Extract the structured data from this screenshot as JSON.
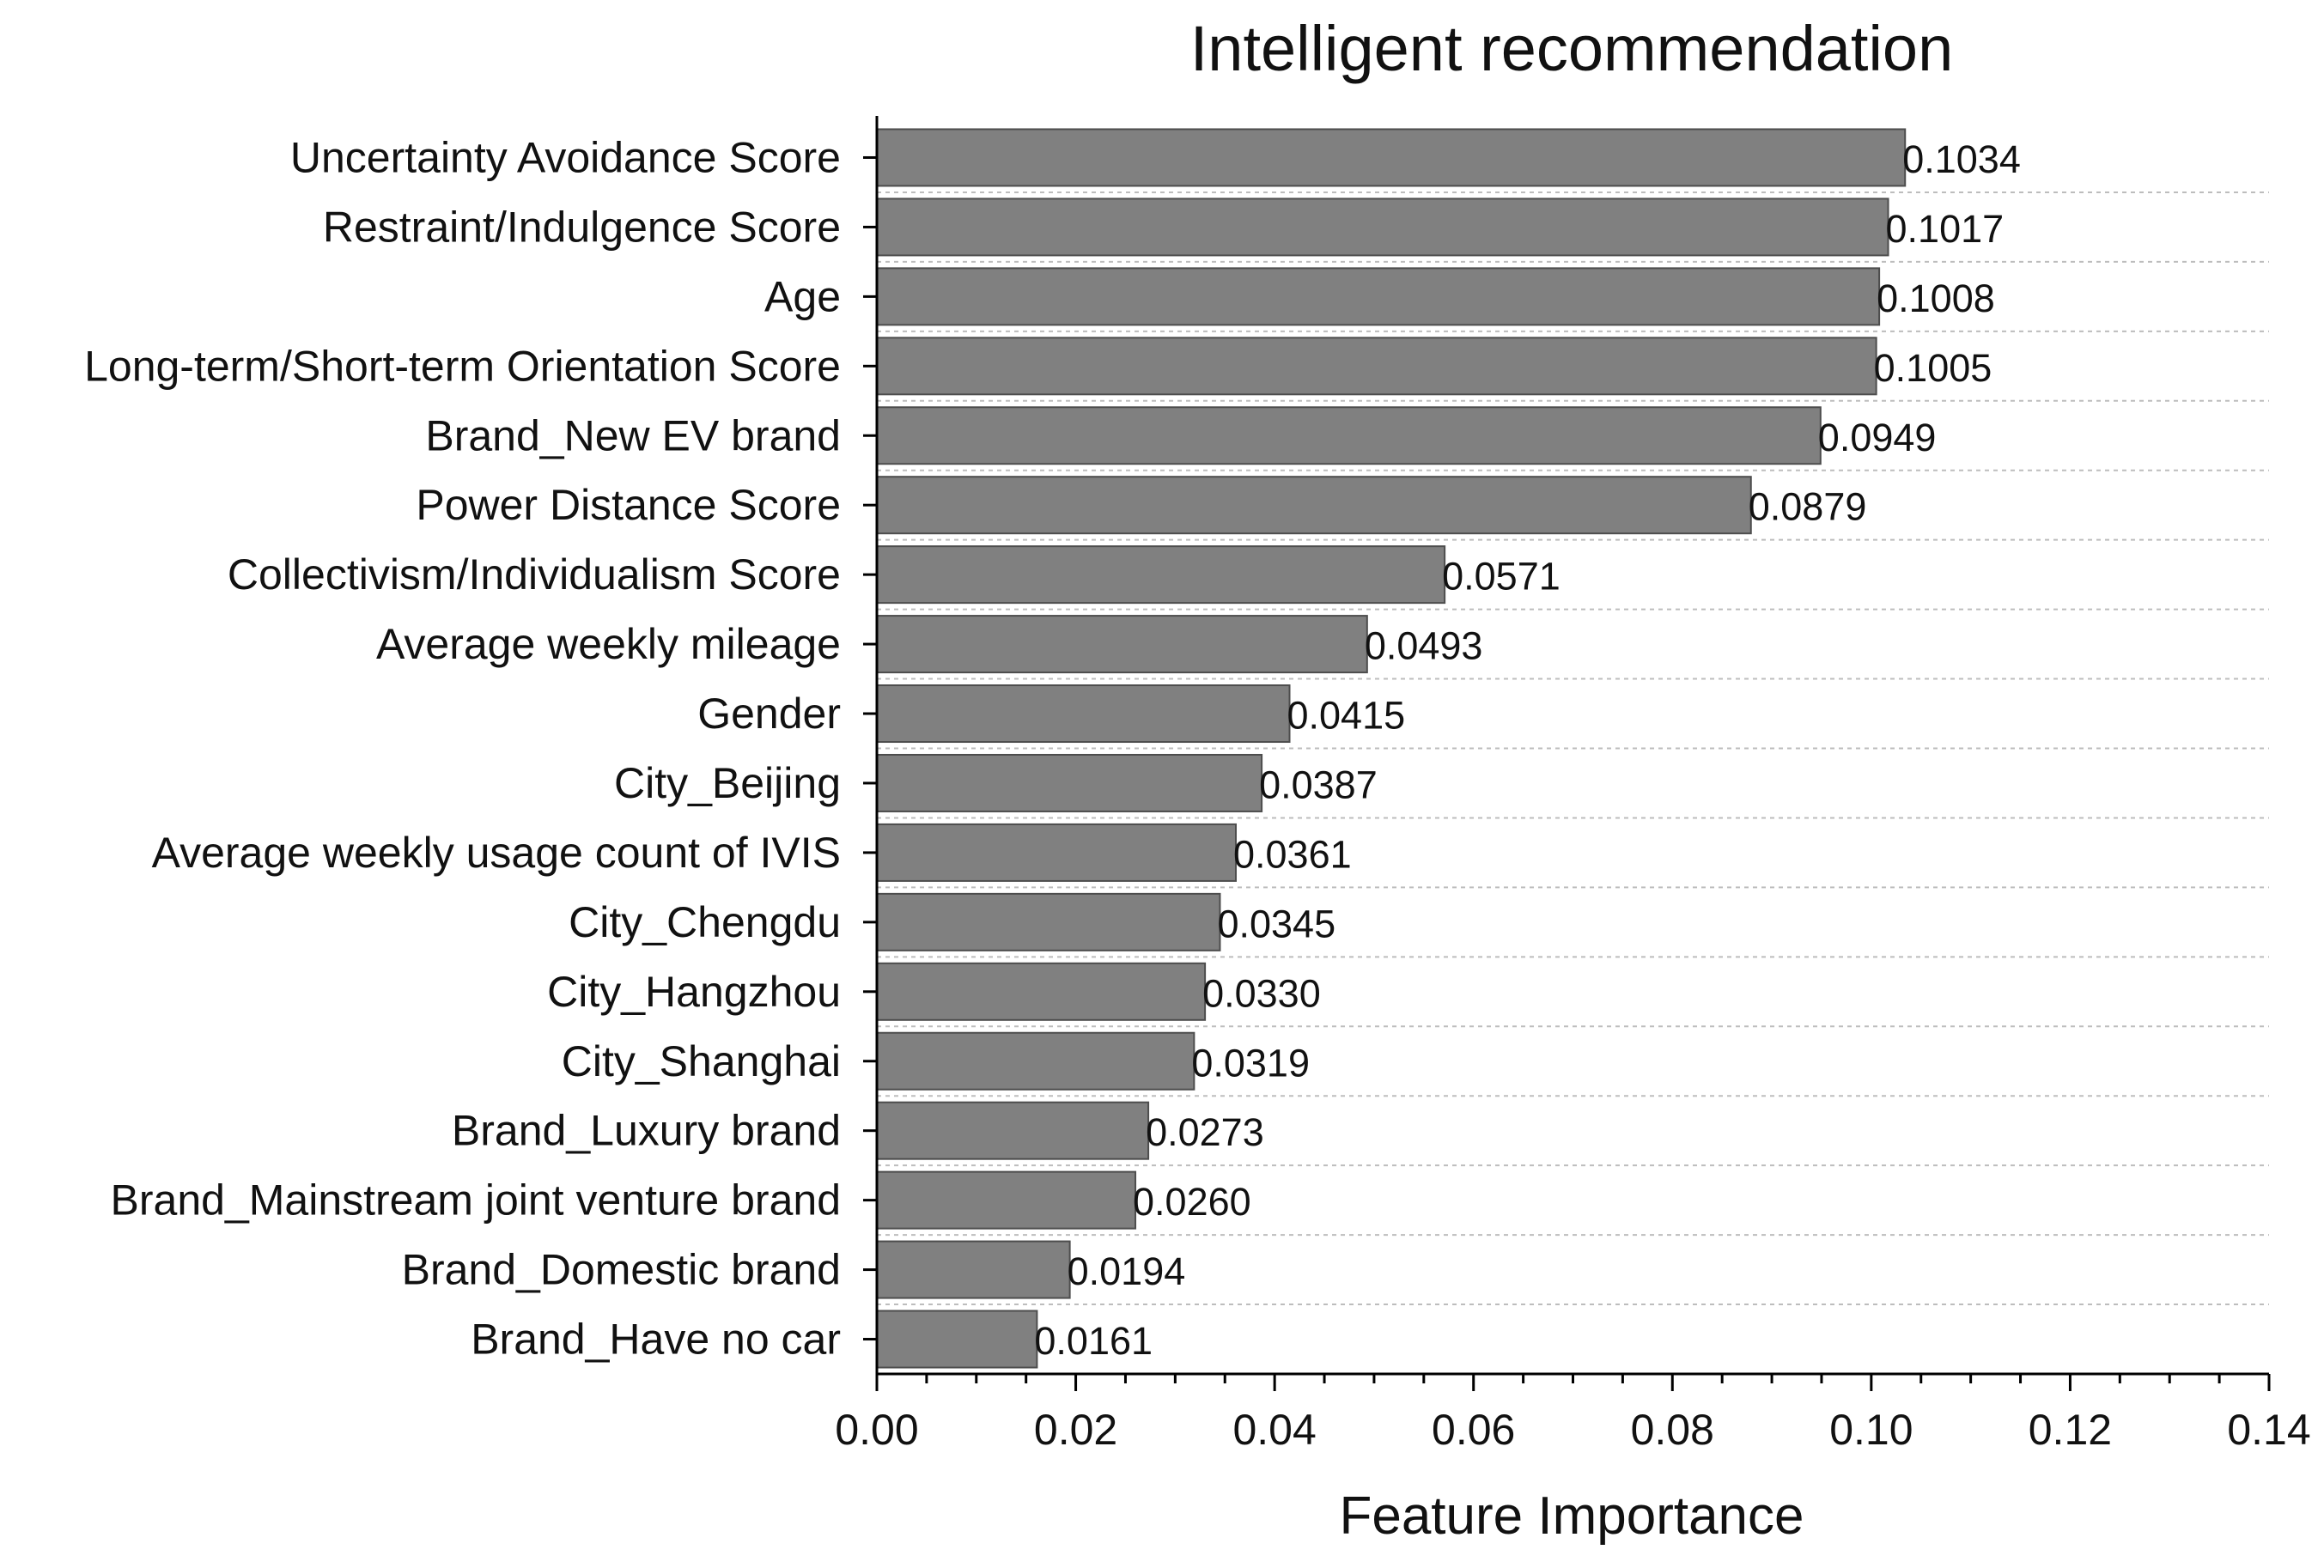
{
  "chart_data": {
    "type": "bar",
    "orientation": "horizontal",
    "title": "Intelligent recommendation",
    "xlabel": "Feature Importance",
    "ylabel": "",
    "xlim": [
      0,
      0.14
    ],
    "x_ticks": [
      "0.00",
      "0.02",
      "0.04",
      "0.06",
      "0.08",
      "0.10",
      "0.12",
      "0.14"
    ],
    "grid": "horizontal dashed lines between bars",
    "colors": {
      "bar": "#808080",
      "bar_edge": "#4d4d4d",
      "grid": "#bdbdbd"
    },
    "categories": [
      "Uncertainty Avoidance Score",
      "Restraint/Indulgence Score",
      "Age",
      "Long-term/Short-term Orientation Score",
      "Brand_New EV brand",
      "Power Distance Score",
      "Collectivism/Individualism Score",
      "Average weekly mileage",
      "Gender",
      "City_Beijing",
      "Average weekly usage count of IVIS",
      "City_Chengdu",
      "City_Hangzhou",
      "City_Shanghai",
      "Brand_Luxury brand",
      "Brand_Mainstream joint venture brand",
      "Brand_Domestic brand",
      "Brand_Have no car"
    ],
    "values": [
      0.1034,
      0.1017,
      0.1008,
      0.1005,
      0.0949,
      0.0879,
      0.0571,
      0.0493,
      0.0415,
      0.0387,
      0.0361,
      0.0345,
      0.033,
      0.0319,
      0.0273,
      0.026,
      0.0194,
      0.0161
    ],
    "value_labels": [
      "0.1034",
      "0.1017",
      "0.1008",
      "0.1005",
      "0.0949",
      "0.0879",
      "0.0571",
      "0.0493",
      "0.0415",
      "0.0387",
      "0.0361",
      "0.0345",
      "0.0330",
      "0.0319",
      "0.0273",
      "0.0260",
      "0.0194",
      "0.0161"
    ]
  }
}
